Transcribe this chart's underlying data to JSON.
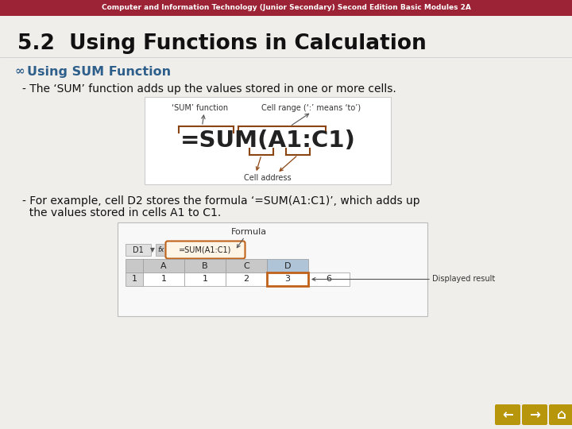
{
  "bg_color": "#f0eeeb",
  "header_color": "#9b2335",
  "header_text": "Computer and Information Technology (Junior Secondary) Second Edition Basic Modules 2A",
  "header_text_color": "#ffffff",
  "title": "5.2  Using Functions in Calculation",
  "title_color": "#111111",
  "subtitle": "Using SUM Function",
  "subtitle_color": "#2e5f8a",
  "bullet_char": "∞",
  "line1": "- The ‘SUM’ function adds up the values stored in one or more cells.",
  "line2a": "- For example, cell D2 stores the formula ‘=SUM(A1:C1)’, which adds up",
  "line2b": "  the values stored in cells A1 to C1.",
  "diagram_sum_label": "‘SUM’ function",
  "diagram_range_label": "Cell range (‘:’ means ‘to’)",
  "diagram_cell_label": "Cell address",
  "diagram_formula": "=SUM(A1:C1)",
  "diagram_bg": "#ffffff",
  "diagram_border": "#cccccc",
  "bracket_color": "#8b4513",
  "formula_text_color": "#222222",
  "sheet_bg": "#ffffff",
  "sheet_border": "#aaaaaa",
  "formula_bar_text": "=SUM(A1:C1)",
  "formula_oval_color": "#c0621a",
  "col_header_bg": "#c8c8c8",
  "col_d_header_bg": "#b0c4d8",
  "row_num_bg": "#d8d8d8",
  "data_row_bg": "#ffffff",
  "d_cell_border": "#c0621a",
  "nav_color": "#b8960c",
  "formula_label": "Formula",
  "displayed_result": "Displayed result"
}
